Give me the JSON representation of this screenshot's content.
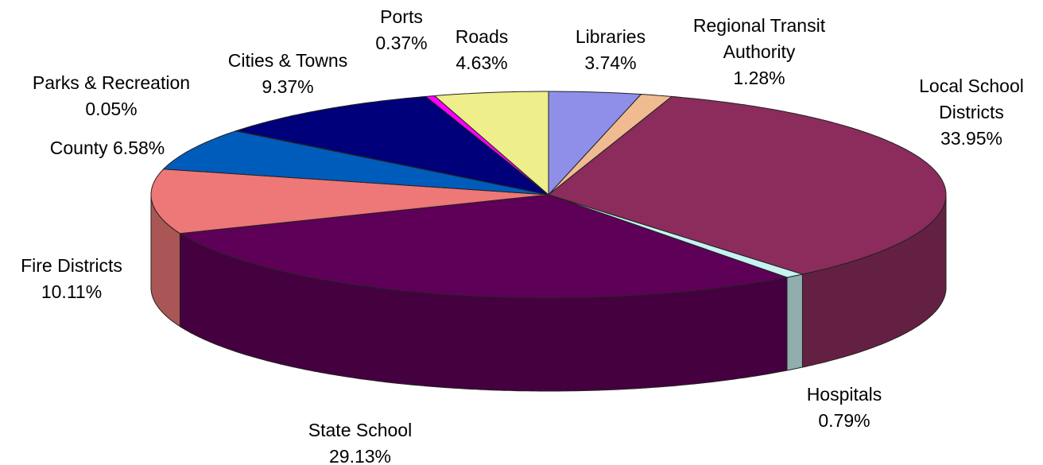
{
  "chart_data": {
    "type": "pie",
    "categories": [
      "Libraries",
      "Regional Transit Authority",
      "Local School Districts",
      "Hospitals",
      "State School",
      "Fire Districts",
      "County",
      "Parks & Recreation",
      "Cities & Towns",
      "Ports",
      "Roads"
    ],
    "values": [
      3.74,
      1.28,
      33.95,
      0.79,
      29.13,
      10.11,
      6.58,
      0.05,
      9.37,
      0.37,
      4.63
    ],
    "value_labels": [
      "3.74%",
      "1.28%",
      "33.95%",
      "0.79%",
      "29.13%",
      "10.11%",
      "6.58%",
      "0.05%",
      "9.37%",
      "0.37%",
      "4.63%"
    ],
    "colors": [
      "#8f8fea",
      "#f0bb90",
      "#8b2c5c",
      "#c8f2f2",
      "#5e0058",
      "#ee7777",
      "#005cbb",
      "#9a9aff",
      "#00007a",
      "#ff00ff",
      "#eeee8a"
    ]
  }
}
